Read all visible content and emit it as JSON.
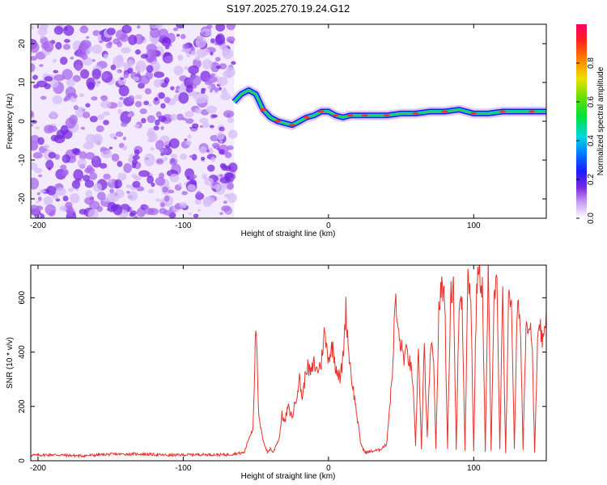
{
  "title": "S197.2025.270.19.24.G12",
  "chart_data": [
    {
      "type": "heatmap",
      "name": "spectrogram",
      "xlabel": "Height of straight line (km)",
      "ylabel": "Frequency (Hz)",
      "xlim": [
        -205,
        150
      ],
      "ylim": [
        -25,
        25
      ],
      "xticks": [
        -200,
        -100,
        0,
        100
      ],
      "yticks": [
        -20,
        -10,
        0,
        10,
        20
      ],
      "noise_region_x": [
        -205,
        -65
      ],
      "ridge": {
        "x": [
          -65,
          -60,
          -55,
          -50,
          -45,
          -40,
          -35,
          -30,
          -25,
          -20,
          -15,
          -10,
          -5,
          0,
          5,
          10,
          15,
          20,
          25,
          30,
          40,
          50,
          60,
          70,
          80,
          90,
          100,
          110,
          120,
          130,
          140,
          150
        ],
        "freq": [
          5,
          7,
          8,
          7,
          3,
          1,
          0,
          -0.5,
          -1,
          0,
          1,
          1.5,
          2.5,
          2.5,
          1.5,
          1,
          1.5,
          1.5,
          1.5,
          1.5,
          1.5,
          2,
          2,
          2.5,
          2.5,
          3,
          2,
          2,
          2.5,
          2.5,
          2.5,
          2.5
        ]
      },
      "colorbar": {
        "label": "Normalized spectral amplitude",
        "range": [
          0.0,
          1.0
        ],
        "ticks": [
          0.0,
          0.2,
          0.4,
          0.6,
          0.8
        ],
        "tick_labels": [
          "0.0",
          "0.2",
          "0.4",
          "0.6",
          "0.8"
        ]
      }
    },
    {
      "type": "line",
      "name": "snr",
      "xlabel": "Height of straight line (km)",
      "ylabel": "SNR (10 * v/v)",
      "xlim": [
        -205,
        150
      ],
      "ylim": [
        0,
        720
      ],
      "xticks": [
        -200,
        -100,
        0,
        100
      ],
      "yticks": [
        0,
        200,
        400,
        600
      ],
      "color": "#e8312a",
      "series": [
        {
          "name": "SNR",
          "x": [
            -205,
            -190,
            -170,
            -150,
            -130,
            -110,
            -90,
            -70,
            -58,
            -55,
            -52,
            -50,
            -48,
            -46,
            -44,
            -42,
            -40,
            -38,
            -36,
            -34,
            -32,
            -30,
            -28,
            -25,
            -22,
            -20,
            -18,
            -15,
            -12,
            -10,
            -8,
            -5,
            -3,
            0,
            3,
            5,
            8,
            10,
            12,
            14,
            16,
            18,
            20,
            22,
            24,
            26,
            30,
            35,
            40,
            44,
            46,
            48,
            50,
            52,
            54,
            56,
            58,
            60,
            62,
            64,
            66,
            68,
            70,
            72,
            74,
            76,
            78,
            80,
            82,
            84,
            86,
            88,
            90,
            92,
            94,
            96,
            98,
            100,
            102,
            104,
            106,
            108,
            110,
            112,
            114,
            116,
            118,
            120,
            122,
            124,
            126,
            128,
            130,
            132,
            134,
            136,
            138,
            140,
            142,
            144,
            146,
            148,
            150
          ],
          "y": [
            20,
            22,
            18,
            24,
            25,
            20,
            23,
            22,
            30,
            80,
            120,
            500,
            160,
            100,
            60,
            30,
            45,
            30,
            60,
            80,
            170,
            140,
            200,
            160,
            240,
            300,
            230,
            350,
            320,
            360,
            330,
            360,
            470,
            380,
            420,
            350,
            300,
            380,
            560,
            400,
            300,
            230,
            150,
            70,
            40,
            30,
            35,
            40,
            60,
            320,
            600,
            470,
            420,
            380,
            400,
            360,
            300,
            50,
            430,
            40,
            420,
            80,
            380,
            420,
            40,
            560,
            640,
            620,
            40,
            600,
            660,
            40,
            580,
            600,
            40,
            680,
            620,
            30,
            650,
            690,
            640,
            30,
            700,
            40,
            620,
            640,
            40,
            610,
            30,
            580,
            600,
            40,
            560,
            540,
            40,
            520,
            500,
            470,
            30,
            440,
            480,
            420,
            550
          ]
        }
      ]
    }
  ]
}
